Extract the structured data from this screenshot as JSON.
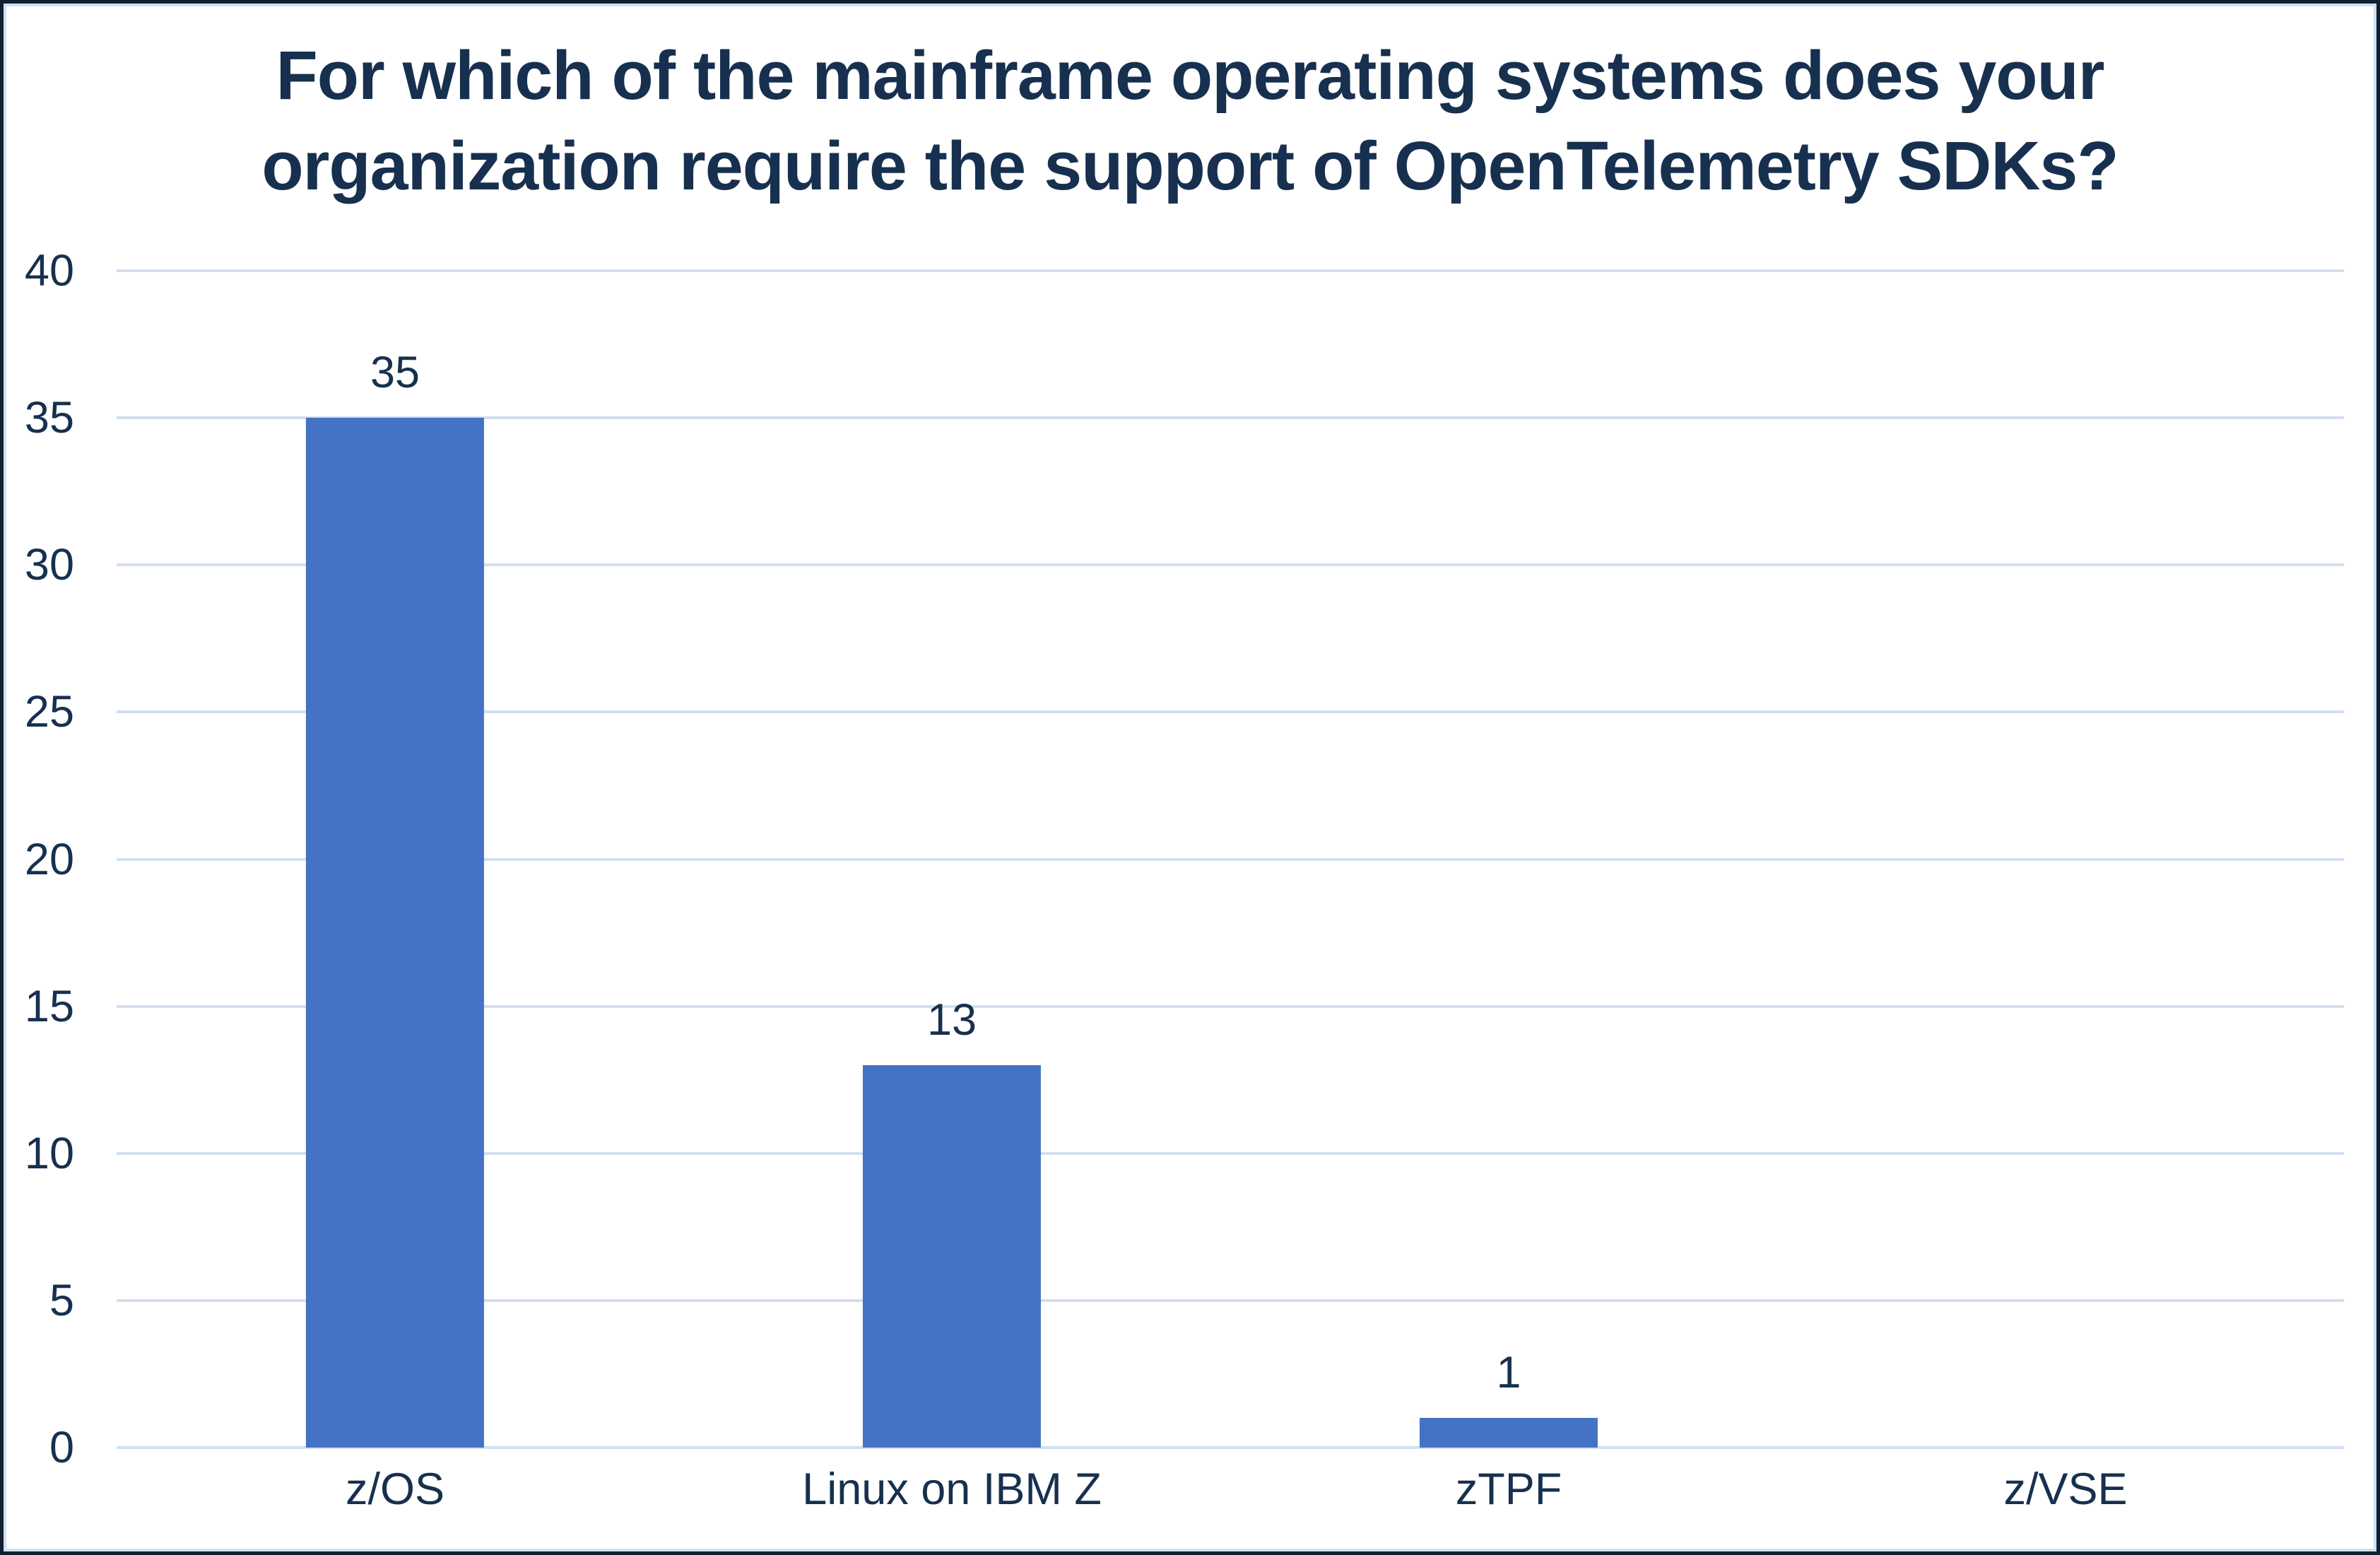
{
  "chart_data": {
    "type": "bar",
    "title": "For which of the mainframe operating systems does your organization require the support of OpenTelemetry SDKs?",
    "title_lines": [
      "For which of the mainframe operating systems does your",
      "organization require the support of OpenTelemetry SDKs?"
    ],
    "categories": [
      "z/OS",
      "Linux on IBM Z",
      "zTPF",
      "z/VSE"
    ],
    "values": [
      35,
      13,
      1,
      0
    ],
    "value_labels": [
      "35",
      "13",
      "1",
      ""
    ],
    "yticks": [
      0,
      5,
      10,
      15,
      20,
      25,
      30,
      35,
      40
    ],
    "ylim": [
      0,
      40
    ],
    "xlabel": "",
    "ylabel": "",
    "grid": "horizontal",
    "legend": "none",
    "colors": {
      "bar": "#4472c4",
      "gridline": "#d2dff1",
      "text": "#17304f",
      "frame_outer": "#121f33",
      "frame_inner": "#cfe0f2",
      "background": "#ffffff"
    }
  }
}
